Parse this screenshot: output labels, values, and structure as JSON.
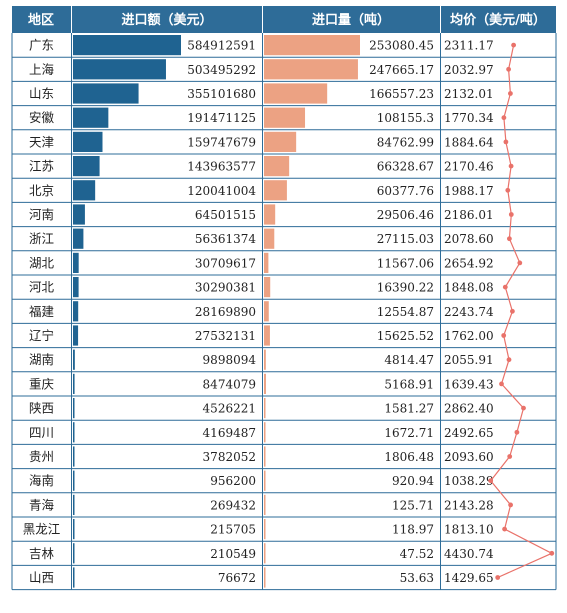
{
  "headers": {
    "region": "地区",
    "import_amount": "进口额（美元）",
    "import_volume": "进口量（吨）",
    "avg_price": "均价（美元/吨）"
  },
  "chart_data": {
    "type": "table",
    "columns": [
      "地区",
      "进口额（美元）",
      "进口量（吨）",
      "均价（美元/吨）"
    ],
    "rows": [
      {
        "region": "广东",
        "amount": 584912591,
        "amount_label": "584912591",
        "volume": 253080.45,
        "volume_label": "253080.45",
        "price": 2311.17,
        "price_label": "2311.17"
      },
      {
        "region": "上海",
        "amount": 503495292,
        "amount_label": "503495292",
        "volume": 247665.17,
        "volume_label": "247665.17",
        "price": 2032.97,
        "price_label": "2032.97"
      },
      {
        "region": "山东",
        "amount": 355101680,
        "amount_label": "355101680",
        "volume": 166557.23,
        "volume_label": "166557.23",
        "price": 2132.01,
        "price_label": "2132.01"
      },
      {
        "region": "安徽",
        "amount": 191471125,
        "amount_label": "191471125",
        "volume": 108155.3,
        "volume_label": "108155.3",
        "price": 1770.34,
        "price_label": "1770.34"
      },
      {
        "region": "天津",
        "amount": 159747679,
        "amount_label": "159747679",
        "volume": 84762.99,
        "volume_label": "84762.99",
        "price": 1884.64,
        "price_label": "1884.64"
      },
      {
        "region": "江苏",
        "amount": 143963577,
        "amount_label": "143963577",
        "volume": 66328.67,
        "volume_label": "66328.67",
        "price": 2170.46,
        "price_label": "2170.46"
      },
      {
        "region": "北京",
        "amount": 120041004,
        "amount_label": "120041004",
        "volume": 60377.76,
        "volume_label": "60377.76",
        "price": 1988.17,
        "price_label": "1988.17"
      },
      {
        "region": "河南",
        "amount": 64501515,
        "amount_label": "64501515",
        "volume": 29506.46,
        "volume_label": "29506.46",
        "price": 2186.01,
        "price_label": "2186.01"
      },
      {
        "region": "浙江",
        "amount": 56361374,
        "amount_label": "56361374",
        "volume": 27115.03,
        "volume_label": "27115.03",
        "price": 2078.6,
        "price_label": "2078.60"
      },
      {
        "region": "湖北",
        "amount": 30709617,
        "amount_label": "30709617",
        "volume": 11567.06,
        "volume_label": "11567.06",
        "price": 2654.92,
        "price_label": "2654.92"
      },
      {
        "region": "河北",
        "amount": 30290381,
        "amount_label": "30290381",
        "volume": 16390.22,
        "volume_label": "16390.22",
        "price": 1848.08,
        "price_label": "1848.08"
      },
      {
        "region": "福建",
        "amount": 28169890,
        "amount_label": "28169890",
        "volume": 12554.87,
        "volume_label": "12554.87",
        "price": 2243.74,
        "price_label": "2243.74"
      },
      {
        "region": "辽宁",
        "amount": 27532131,
        "amount_label": "27532131",
        "volume": 15625.52,
        "volume_label": "15625.52",
        "price": 1762.0,
        "price_label": "1762.00"
      },
      {
        "region": "湖南",
        "amount": 9898094,
        "amount_label": "9898094",
        "volume": 4814.47,
        "volume_label": "4814.47",
        "price": 2055.91,
        "price_label": "2055.91"
      },
      {
        "region": "重庆",
        "amount": 8474079,
        "amount_label": "8474079",
        "volume": 5168.91,
        "volume_label": "5168.91",
        "price": 1639.43,
        "price_label": "1639.43"
      },
      {
        "region": "陕西",
        "amount": 4526221,
        "amount_label": "4526221",
        "volume": 1581.27,
        "volume_label": "1581.27",
        "price": 2862.4,
        "price_label": "2862.40"
      },
      {
        "region": "四川",
        "amount": 4169487,
        "amount_label": "4169487",
        "volume": 1672.71,
        "volume_label": "1672.71",
        "price": 2492.65,
        "price_label": "2492.65"
      },
      {
        "region": "贵州",
        "amount": 3782052,
        "amount_label": "3782052",
        "volume": 1806.48,
        "volume_label": "1806.48",
        "price": 2093.6,
        "price_label": "2093.60"
      },
      {
        "region": "海南",
        "amount": 956200,
        "amount_label": "956200",
        "volume": 920.94,
        "volume_label": "920.94",
        "price": 1038.29,
        "price_label": "1038.29"
      },
      {
        "region": "青海",
        "amount": 269432,
        "amount_label": "269432",
        "volume": 125.71,
        "volume_label": "125.71",
        "price": 2143.28,
        "price_label": "2143.28"
      },
      {
        "region": "黑龙江",
        "amount": 215705,
        "amount_label": "215705",
        "volume": 118.97,
        "volume_label": "118.97",
        "price": 1813.1,
        "price_label": "1813.10"
      },
      {
        "region": "吉林",
        "amount": 210549,
        "amount_label": "210549",
        "volume": 47.52,
        "volume_label": "47.52",
        "price": 4430.74,
        "price_label": "4430.74"
      },
      {
        "region": "山西",
        "amount": 76672,
        "amount_label": "76672",
        "volume": 53.63,
        "volume_label": "53.63",
        "price": 1429.65,
        "price_label": "1429.65"
      }
    ],
    "amount_range": [
      0,
      584912591
    ],
    "volume_range": [
      0,
      253080.45
    ],
    "price_range": [
      1000,
      4500
    ]
  },
  "colors": {
    "header": "#2e6c98",
    "amount_bar": "#1f6391",
    "volume_bar": "#eca283",
    "price_line": "#e9726a",
    "grid": "#2e6c98"
  }
}
